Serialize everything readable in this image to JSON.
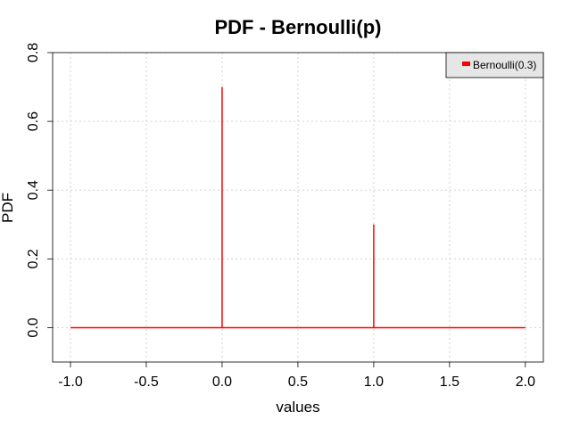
{
  "chart_data": {
    "type": "line",
    "title": "PDF - Bernoulli(p)",
    "xlabel": "values",
    "ylabel": "PDF",
    "xlim": [
      -1.0,
      2.0
    ],
    "ylim": [
      -0.1,
      0.8
    ],
    "x_ticks": [
      "-1.0",
      "-0.5",
      "0.0",
      "0.5",
      "1.0",
      "1.5",
      "2.0"
    ],
    "y_ticks": [
      "0.0",
      "0.2",
      "0.4",
      "0.6",
      "0.8"
    ],
    "grid": true,
    "legend_position": "top-right",
    "series": [
      {
        "name": "Bernoulli(0.3)",
        "color": "#ff0000",
        "x": [
          -1.0,
          0.0,
          0.0,
          0.0,
          1.0,
          1.0,
          1.0,
          2.0
        ],
        "y": [
          0.0,
          0.0,
          0.7,
          0.0,
          0.0,
          0.3,
          0.0,
          0.0
        ]
      }
    ]
  }
}
